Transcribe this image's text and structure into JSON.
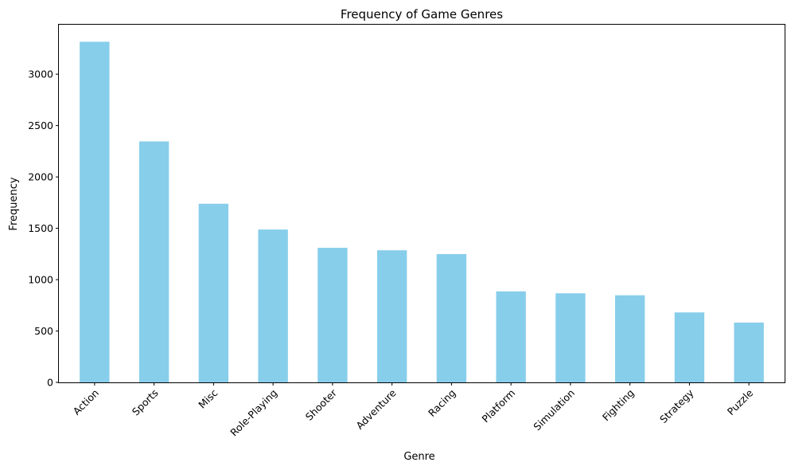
{
  "chart_data": {
    "type": "bar",
    "title": "Frequency of Game Genres",
    "xlabel": "Genre",
    "ylabel": "Frequency",
    "categories": [
      "Action",
      "Sports",
      "Misc",
      "Role-Playing",
      "Shooter",
      "Adventure",
      "Racing",
      "Platform",
      "Simulation",
      "Fighting",
      "Strategy",
      "Puzzle"
    ],
    "values": [
      3316,
      2346,
      1739,
      1488,
      1310,
      1286,
      1249,
      886,
      867,
      848,
      681,
      582
    ],
    "ylim": [
      0,
      3482
    ],
    "yticks": [
      0,
      500,
      1000,
      1500,
      2000,
      2500,
      3000
    ],
    "bar_color": "#87ceeb",
    "grid": false,
    "legend": "none"
  }
}
